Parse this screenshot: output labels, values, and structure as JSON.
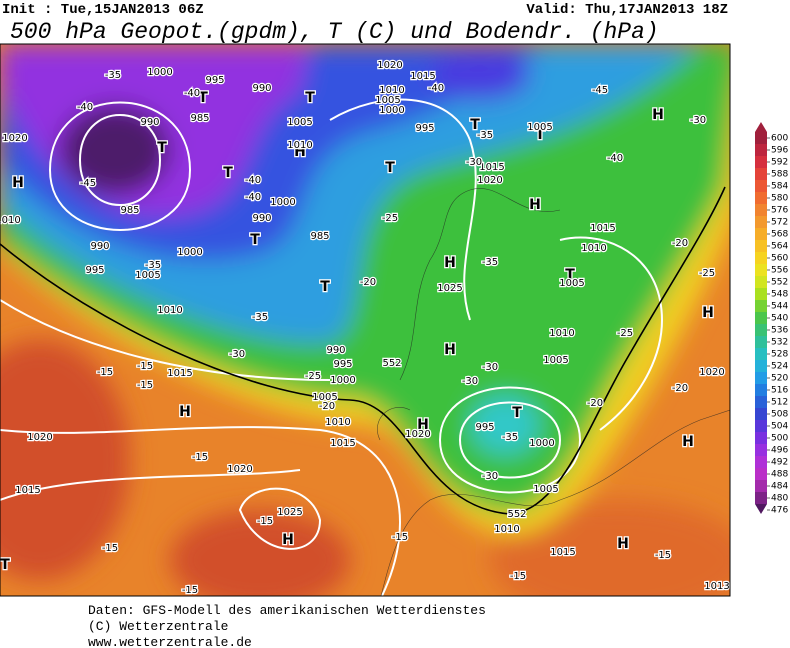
{
  "header": {
    "init": "Init : Tue,15JAN2013 06Z",
    "valid": "Valid: Thu,17JAN2013 18Z",
    "title": "500 hPa Geopot.(gpdm), T (C) und Bodendr. (hPa)"
  },
  "colorbar": {
    "levels": [
      600,
      596,
      592,
      588,
      584,
      580,
      576,
      572,
      568,
      564,
      560,
      556,
      552,
      548,
      544,
      540,
      536,
      532,
      528,
      524,
      520,
      516,
      512,
      508,
      504,
      500,
      496,
      492,
      488,
      484,
      480,
      476
    ]
  },
  "map_labels": [
    "H",
    "H",
    "H",
    "H",
    "H",
    "H",
    "H",
    "H",
    "H",
    "H",
    "H",
    "H",
    "T",
    "T",
    "T",
    "T",
    "T",
    "T",
    "T",
    "T",
    "T",
    "T",
    "T",
    "T",
    "1000",
    "995",
    "990",
    "990",
    "985",
    "1020",
    "1015",
    "1010",
    "1005",
    "1000",
    "995",
    "985",
    "990",
    "995",
    "1000",
    "1005",
    "1010",
    "1015",
    "1020",
    "1015",
    "1020",
    "1025",
    "1010",
    "1015",
    "1020",
    "1005",
    "1000",
    "995",
    "990",
    "985",
    "1025",
    "1015",
    "1010",
    "1005",
    "1010",
    "1005",
    "1000",
    "995",
    "1005",
    "1010",
    "1015",
    "1005",
    "1010",
    "1005",
    "1000",
    "990",
    "1015",
    "1020",
    "1010",
    "1020",
    "1020",
    "1013",
    "-35",
    "-40",
    "-40",
    "-45",
    "-40",
    "-40",
    "-35",
    "-35",
    "-30",
    "-25",
    "-20",
    "-15",
    "-15",
    "-15",
    "-15",
    "-15",
    "-15",
    "-15",
    "-15",
    "-15",
    "-15",
    "-30",
    "-30",
    "-35",
    "-30",
    "-20",
    "-20",
    "-25",
    "-30",
    "-45",
    "-40",
    "-35",
    "-30",
    "-35",
    "-20",
    "-25",
    "-40",
    "-20",
    "-25",
    "552",
    "552"
  ],
  "footer": [
    "Daten: GFS-Modell des amerikanischen Wetterdienstes",
    "(C) Wetterzentrale",
    "www.wetterzentrale.de"
  ]
}
